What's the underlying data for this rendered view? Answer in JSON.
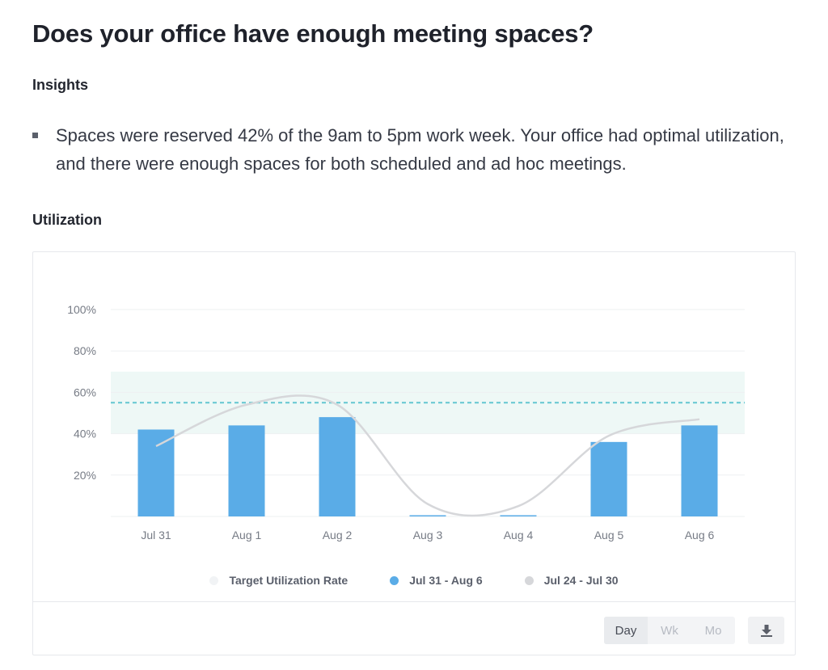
{
  "page": {
    "title": "Does your office have enough meeting spaces?"
  },
  "insights": {
    "heading": "Insights",
    "items": [
      "Spaces were reserved 42% of the 9am to 5pm work week. Your office had optimal utilization, and there were enough spaces for both scheduled and ad hoc meetings."
    ]
  },
  "utilization": {
    "heading": "Utilization"
  },
  "chart_data": {
    "type": "bar",
    "title": "",
    "xlabel": "",
    "ylabel": "",
    "categories": [
      "Jul 31",
      "Aug 1",
      "Aug 2",
      "Aug 3",
      "Aug 4",
      "Aug 5",
      "Aug 6"
    ],
    "yticks": [
      "20%",
      "40%",
      "60%",
      "80%",
      "100%"
    ],
    "ytick_values": [
      20,
      40,
      60,
      80,
      100
    ],
    "ylim": [
      0,
      100
    ],
    "grid": true,
    "legend_position": "bottom",
    "target_band": [
      40,
      70
    ],
    "target_line": 55,
    "series": [
      {
        "name": "Target Utilization Rate",
        "kind": "band",
        "color": "#f1f3f5"
      },
      {
        "name": "Jul 31 - Aug 6",
        "kind": "bar",
        "color": "#5aace7",
        "values": [
          42,
          44,
          48,
          0,
          0,
          36,
          44
        ]
      },
      {
        "name": "Jul 24 - Jul 30",
        "kind": "line",
        "color": "#d4d6da",
        "values": [
          34,
          54,
          54,
          6,
          5,
          39,
          47
        ]
      }
    ]
  },
  "controls": {
    "toggles": [
      {
        "label": "Day",
        "active": true
      },
      {
        "label": "Wk",
        "active": false
      },
      {
        "label": "Mo",
        "active": false
      }
    ],
    "download_icon": "download-icon"
  },
  "colors": {
    "bar": "#5aace7",
    "band": "#eef8f6",
    "target_line": "#62c6d0",
    "comparison_line": "#d6d7da",
    "grid": "#eef0f2"
  }
}
